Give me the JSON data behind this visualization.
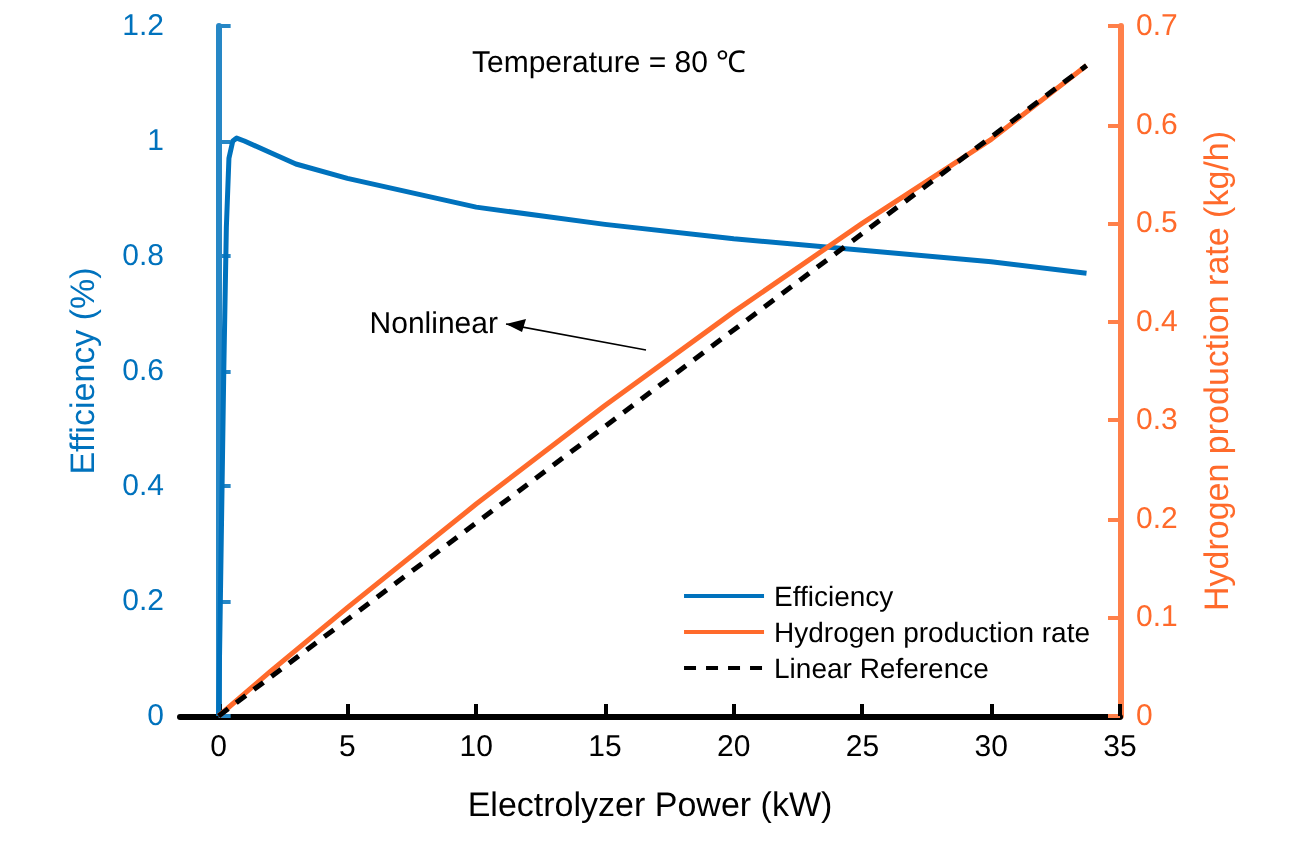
{
  "chart_data": {
    "type": "line",
    "xlabel": "Electrolyzer Power (kW)",
    "ylabel": "Efficiency (%)",
    "y2label": "Hydrogen production rate (kg/h)",
    "annotations": [
      "Temperature = 80 ℃",
      "Nonlinear"
    ],
    "xlim": [
      -1.5,
      35
    ],
    "xticks": [
      0,
      5,
      10,
      15,
      20,
      25,
      30,
      35
    ],
    "ylim": [
      0,
      1.2
    ],
    "yticks": [
      0,
      0.2,
      0.4,
      0.6,
      0.8,
      1,
      1.2
    ],
    "y2lim": [
      0,
      0.7
    ],
    "y2ticks": [
      0,
      0.1,
      0.2,
      0.3,
      0.4,
      0.5,
      0.6,
      0.7
    ],
    "grid": false,
    "legend": "bottom right",
    "marker": "none",
    "series": [
      {
        "name": "Efficiency",
        "color": "#0072bd",
        "line_style": "solid",
        "x": [
          0,
          0.1,
          0.2,
          0.3,
          0.4,
          0.55,
          0.7,
          1,
          2,
          3,
          5,
          10,
          15,
          20,
          25,
          30,
          33.7
        ],
        "values": [
          0,
          0.3,
          0.6,
          0.85,
          0.97,
          1.0,
          1.005,
          1.0,
          0.98,
          0.96,
          0.935,
          0.885,
          0.855,
          0.83,
          0.81,
          0.79,
          0.77
        ]
      },
      {
        "name": "Hydrogen production rate",
        "color": "#ff6a2b",
        "axis": "y2",
        "line_style": "solid",
        "x": [
          0,
          2,
          5,
          10,
          15,
          20,
          25,
          30,
          33.7
        ],
        "values": [
          0,
          0.045,
          0.11,
          0.215,
          0.315,
          0.41,
          0.5,
          0.585,
          0.66
        ]
      },
      {
        "name": "Linear Reference",
        "color": "#000000",
        "axis": "y2",
        "line_style": "dashed",
        "x": [
          0,
          33.7
        ],
        "values": [
          0,
          0.66
        ]
      }
    ]
  }
}
